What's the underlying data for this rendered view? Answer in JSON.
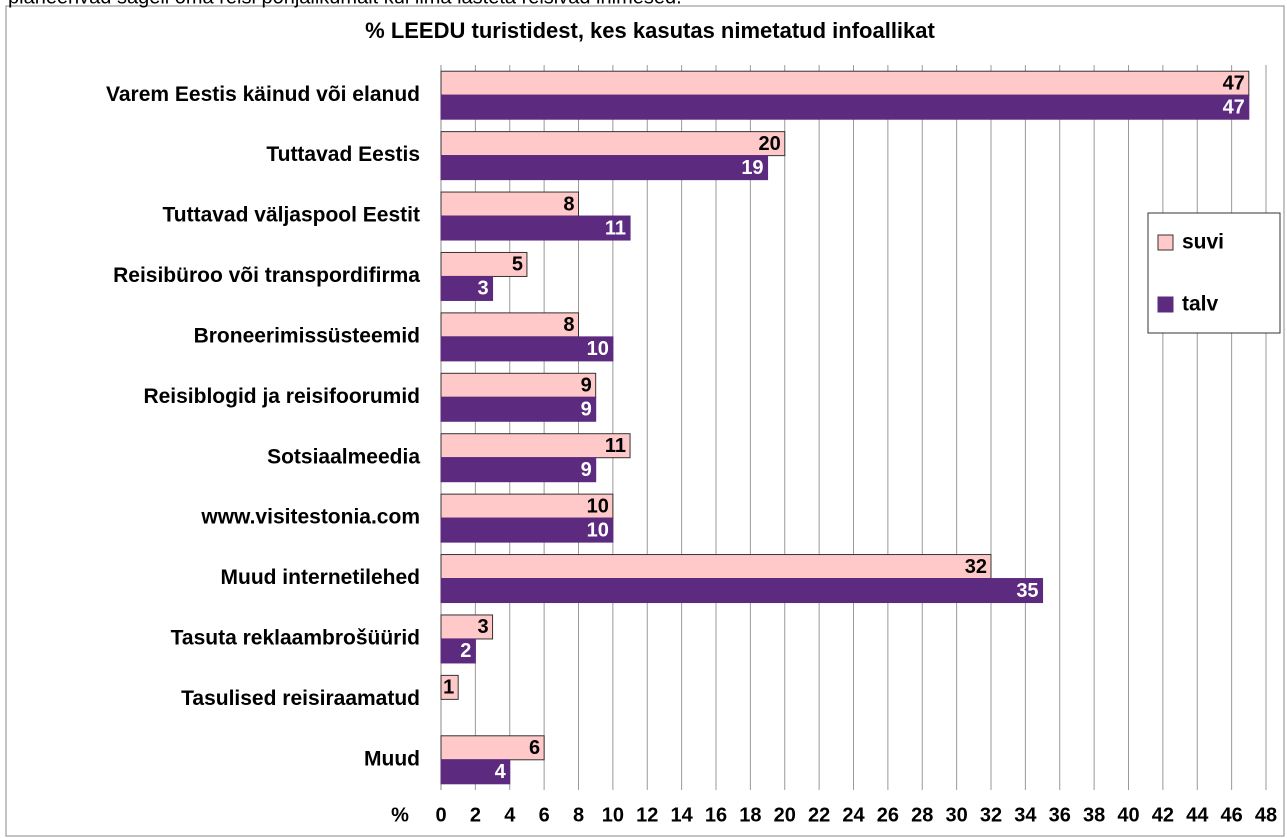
{
  "caption": "planeerivad sageli oma reisi põhjalikumalt kui ilma lasteta reisivad inimesed.",
  "chart_data": {
    "type": "barh",
    "title": "% LEEDU turistidest, kes kasutas nimetatud infoallikat",
    "xlabel": "%",
    "categories": [
      "Varem Eestis käinud või elanud",
      "Tuttavad Eestis",
      "Tuttavad väljaspool Eestit",
      "Reisibüroo või transpordifirma",
      "Broneerimissüsteemid",
      "Reisiblogid ja reisifoorumid",
      "Sotsiaalmeedia",
      "www.visitestonia.com",
      "Muud internetilehed",
      "Tasuta reklaambrošüürid",
      "Tasulised reisiraamatud",
      "Muud"
    ],
    "series": [
      {
        "name": "suvi",
        "color": "#ffc9c9",
        "values": [
          47,
          20,
          8,
          5,
          8,
          9,
          11,
          10,
          32,
          3,
          1,
          6
        ]
      },
      {
        "name": "talv",
        "color": "#5c2a7f",
        "values": [
          47,
          19,
          11,
          3,
          10,
          9,
          9,
          10,
          35,
          2,
          null,
          4
        ]
      }
    ],
    "xlim": [
      0,
      48
    ],
    "xticks": [
      0,
      2,
      4,
      6,
      8,
      10,
      12,
      14,
      16,
      18,
      20,
      22,
      24,
      26,
      28,
      30,
      32,
      34,
      36,
      38,
      40,
      42,
      44,
      46,
      48
    ],
    "grid": true,
    "legend": "right"
  }
}
